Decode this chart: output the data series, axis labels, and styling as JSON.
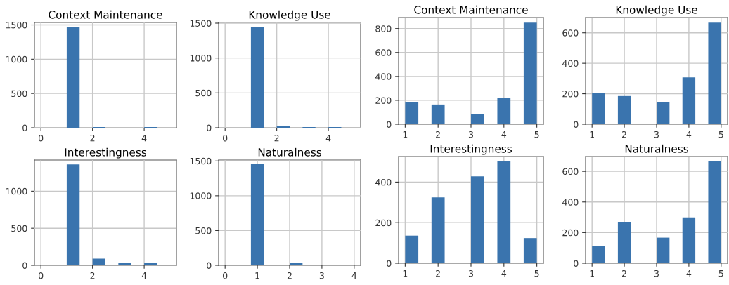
{
  "chart_data": [
    {
      "type": "histogram",
      "title": "Context Maintenance",
      "bins": [
        0,
        0.5,
        1,
        1.5,
        2,
        2.5,
        3,
        3.5,
        4,
        4.5,
        5
      ],
      "values": [
        0,
        0,
        1470,
        0,
        10,
        0,
        0,
        0,
        10,
        0
      ],
      "color": "#3a74ae",
      "xlim": [
        -0.25,
        5.25
      ],
      "ylim": [
        0,
        1536
      ],
      "xticks": [
        0,
        2,
        4
      ],
      "yticks": [
        0,
        500,
        1000,
        1500
      ],
      "grid": true
    },
    {
      "type": "histogram",
      "title": "Knowledge Use",
      "bins": [
        0,
        0.5,
        1,
        1.5,
        2,
        2.5,
        3,
        3.5,
        4,
        4.5,
        5
      ],
      "values": [
        0,
        0,
        1450,
        0,
        30,
        0,
        10,
        0,
        10,
        0
      ],
      "color": "#3a74ae",
      "xlim": [
        -0.25,
        5.25
      ],
      "ylim": [
        0,
        1510
      ],
      "xticks": [
        0,
        2,
        4
      ],
      "yticks": [
        0,
        500,
        1000,
        1500
      ],
      "grid": true
    },
    {
      "type": "histogram",
      "title": "Context Maintenance",
      "bins": [
        1,
        1.4,
        1.8,
        2.2,
        2.6,
        3,
        3.4,
        3.8,
        4.2,
        4.6,
        5
      ],
      "values": [
        185,
        0,
        165,
        0,
        0,
        85,
        0,
        220,
        0,
        850
      ],
      "color": "#3a74ae",
      "xlim": [
        0.8,
        5.2
      ],
      "ylim": [
        0,
        892
      ],
      "xticks": [
        1,
        2,
        3,
        4,
        5
      ],
      "yticks": [
        0,
        200,
        400,
        600,
        800
      ],
      "grid": true
    },
    {
      "type": "histogram",
      "title": "Knowledge Use",
      "bins": [
        1,
        1.4,
        1.8,
        2.2,
        2.6,
        3,
        3.4,
        3.8,
        4.2,
        4.6,
        5
      ],
      "values": [
        205,
        0,
        185,
        0,
        0,
        143,
        0,
        307,
        0,
        667
      ],
      "color": "#3a74ae",
      "xlim": [
        0.8,
        5.2
      ],
      "ylim": [
        0,
        700
      ],
      "xticks": [
        1,
        2,
        3,
        4,
        5
      ],
      "yticks": [
        0,
        200,
        400,
        600
      ],
      "grid": true
    },
    {
      "type": "histogram",
      "title": "Interestingness",
      "bins": [
        0,
        0.5,
        1,
        1.5,
        2,
        2.5,
        3,
        3.5,
        4,
        4.5,
        5
      ],
      "values": [
        0,
        0,
        1360,
        0,
        90,
        0,
        30,
        0,
        30,
        0
      ],
      "color": "#3a74ae",
      "xlim": [
        -0.25,
        5.25
      ],
      "ylim": [
        0,
        1420
      ],
      "xticks": [
        0,
        2,
        4
      ],
      "yticks": [
        0,
        500,
        1000
      ],
      "grid": true
    },
    {
      "type": "histogram",
      "title": "Naturalness",
      "bins": [
        0,
        0.4,
        0.8,
        1.2,
        1.6,
        2,
        2.4,
        2.8,
        3.2,
        3.6,
        4
      ],
      "values": [
        0,
        0,
        1460,
        0,
        0,
        40,
        0,
        0,
        0,
        0
      ],
      "color": "#3a74ae",
      "xlim": [
        -0.2,
        4.2
      ],
      "ylim": [
        0,
        1513
      ],
      "xticks": [
        0,
        1,
        2,
        3,
        4
      ],
      "yticks": [
        0,
        500,
        1000,
        1500
      ],
      "grid": true
    },
    {
      "type": "histogram",
      "title": "Interestingness",
      "bins": [
        1,
        1.4,
        1.8,
        2.2,
        2.6,
        3,
        3.4,
        3.8,
        4.2,
        4.6,
        5
      ],
      "values": [
        136,
        0,
        324,
        0,
        0,
        428,
        0,
        504,
        0,
        124
      ],
      "color": "#3a74ae",
      "xlim": [
        0.8,
        5.2
      ],
      "ylim": [
        0,
        526
      ],
      "xticks": [
        1,
        2,
        3,
        4,
        5
      ],
      "yticks": [
        0,
        200,
        400
      ],
      "grid": true
    },
    {
      "type": "histogram",
      "title": "Naturalness",
      "bins": [
        1,
        1.4,
        1.8,
        2.2,
        2.6,
        3,
        3.4,
        3.8,
        4.2,
        4.6,
        5
      ],
      "values": [
        112,
        0,
        271,
        0,
        0,
        167,
        0,
        299,
        0,
        668
      ],
      "color": "#3a74ae",
      "xlim": [
        0.8,
        5.2
      ],
      "ylim": [
        0,
        697
      ],
      "xticks": [
        1,
        2,
        3,
        4,
        5
      ],
      "yticks": [
        0,
        200,
        400,
        600
      ],
      "grid": true
    }
  ]
}
